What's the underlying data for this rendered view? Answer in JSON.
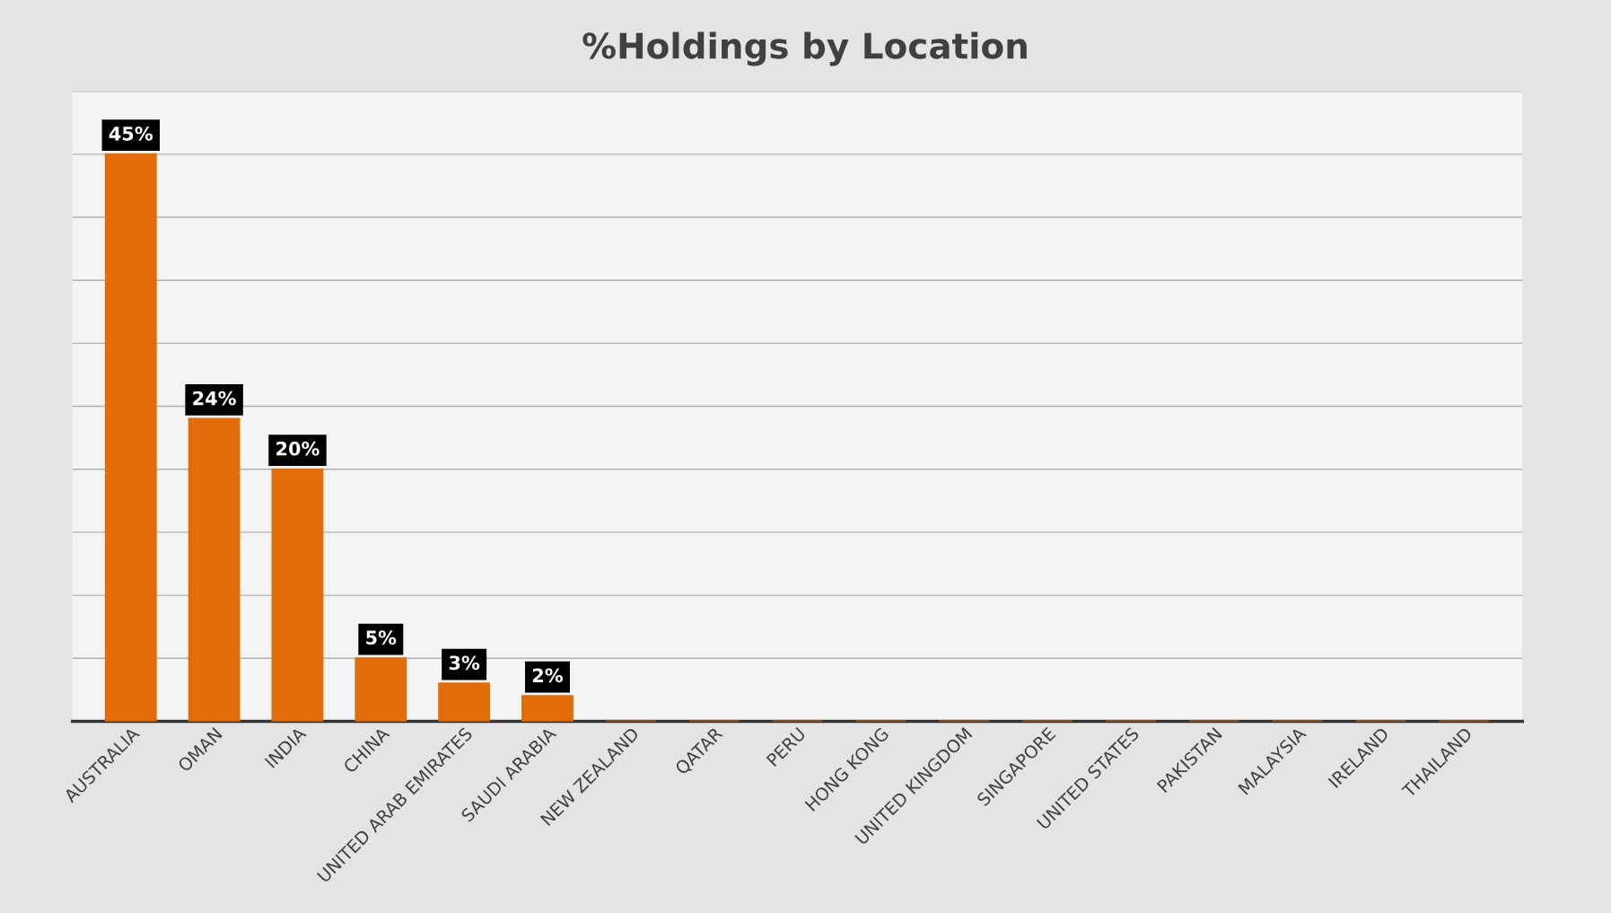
{
  "chart_data": {
    "type": "bar",
    "title": "%Holdings by Location",
    "categories": [
      "AUSTRALIA",
      "OMAN",
      "INDIA",
      "CHINA",
      "UNITED ARAB EMIRATES",
      "SAUDI ARABIA",
      "NEW ZEALAND",
      "QATAR",
      "PERU",
      "HONG KONG",
      "UNITED KINGDOM",
      "SINGAPORE",
      "UNITED STATES",
      "PAKISTAN",
      "MALAYSIA",
      "IRELAND",
      "THAILAND"
    ],
    "values": [
      45,
      24,
      20,
      5,
      3,
      2,
      0,
      0,
      0,
      0,
      0,
      0,
      0,
      0,
      0,
      0,
      0
    ],
    "value_labels": [
      "45%",
      "24%",
      "20%",
      "5%",
      "3%",
      "2%",
      null,
      null,
      null,
      null,
      null,
      null,
      null,
      null,
      null,
      null,
      null
    ],
    "color": "#e36c0a",
    "ylim": [
      0,
      50
    ],
    "yticks": [
      {
        "value": 0,
        "label": null
      },
      {
        "value": 5,
        "label": null
      },
      {
        "value": 10,
        "label": null
      },
      {
        "value": 15,
        "label": null
      },
      {
        "value": 20,
        "label": null
      },
      {
        "value": 25,
        "label": null
      },
      {
        "value": 30,
        "label": null
      },
      {
        "value": 35,
        "label": null
      },
      {
        "value": 40,
        "label": null
      },
      {
        "value": 45,
        "label": null
      },
      {
        "value": 50,
        "label": null
      }
    ],
    "grid": "y",
    "tick_labels": "x",
    "legend": false
  }
}
